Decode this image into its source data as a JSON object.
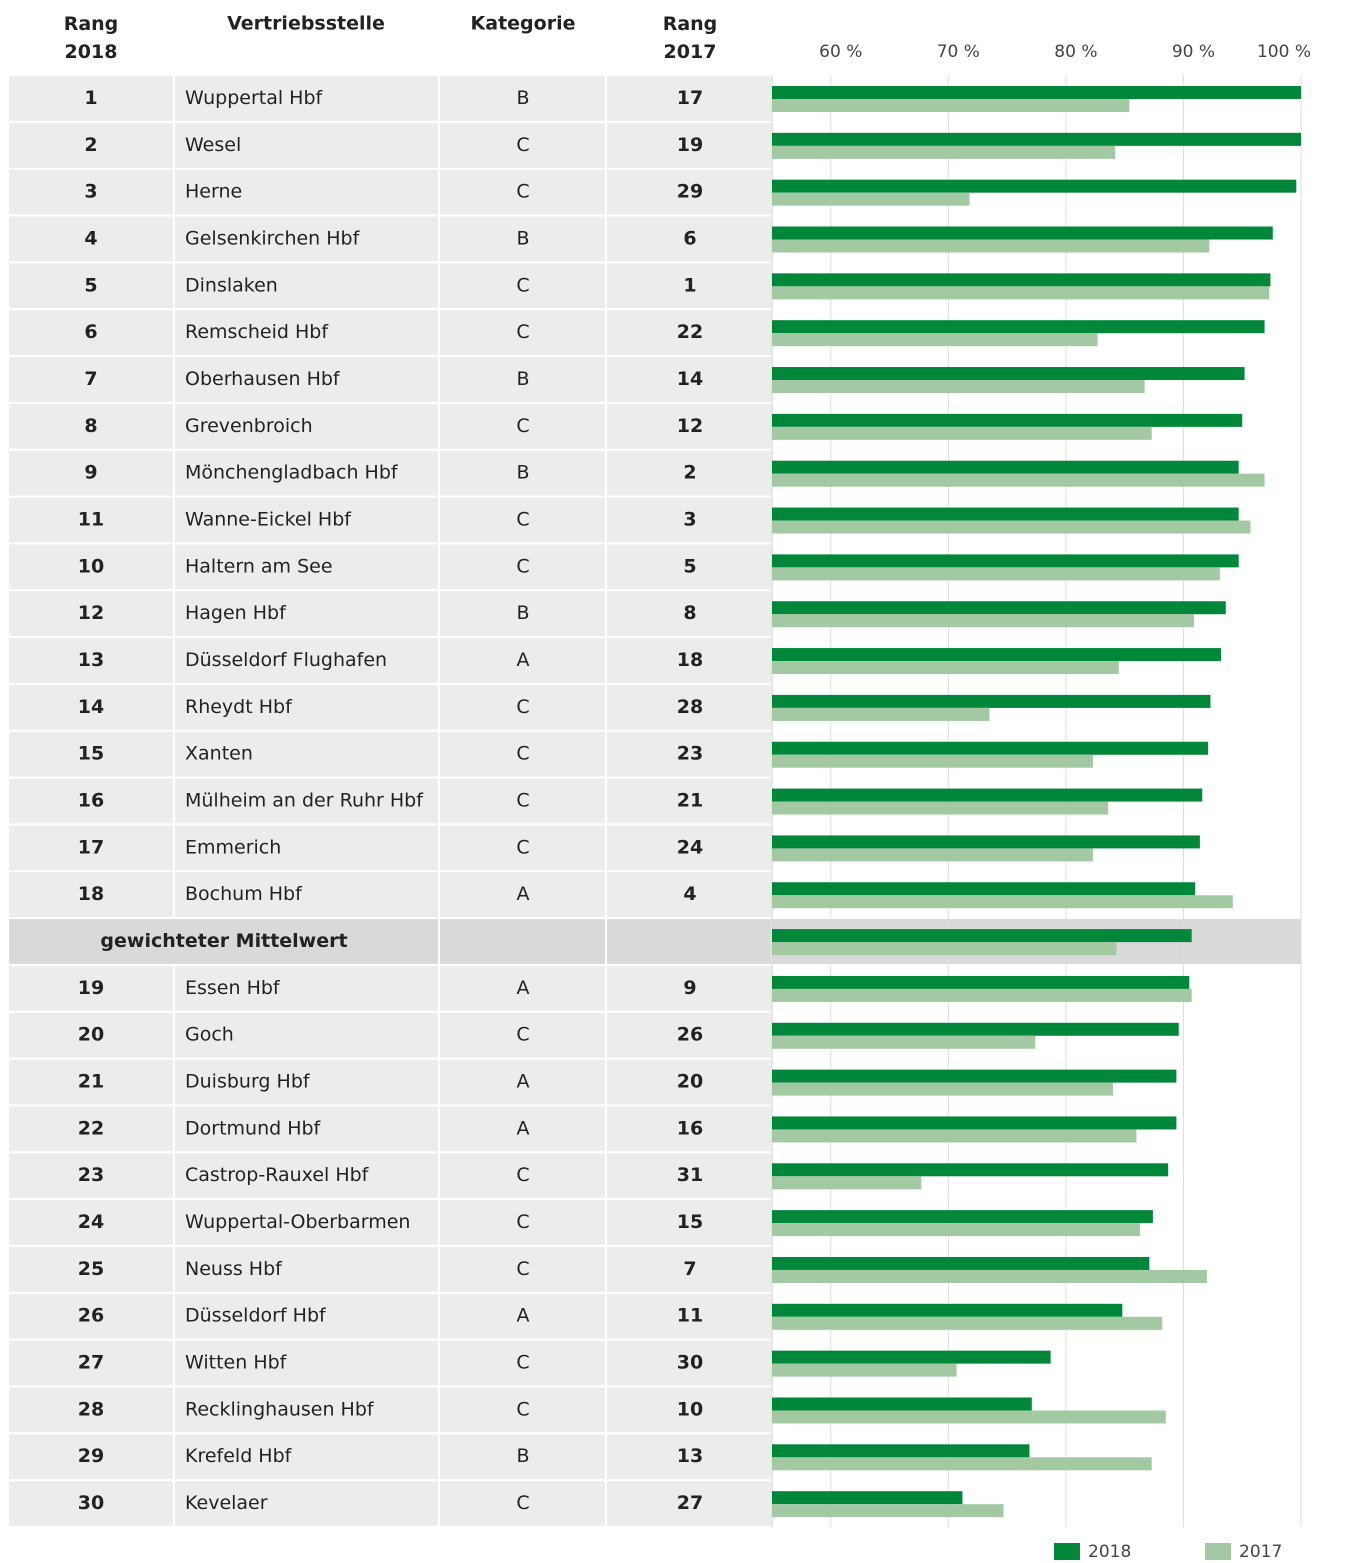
{
  "chart_data": {
    "type": "bar",
    "orientation": "horizontal",
    "columns": [
      "Rang 2018",
      "Vertriebsstelle",
      "Kategorie",
      "Rang 2017"
    ],
    "rows": [
      [
        1,
        "Wuppertal Hbf",
        "B",
        17
      ],
      [
        2,
        "Wesel",
        "C",
        19
      ],
      [
        3,
        "Herne",
        "C",
        29
      ],
      [
        4,
        "Gelsenkirchen Hbf",
        "B",
        6
      ],
      [
        5,
        "Dinslaken",
        "C",
        1
      ],
      [
        6,
        "Remscheid Hbf",
        "C",
        22
      ],
      [
        7,
        "Oberhausen Hbf",
        "B",
        14
      ],
      [
        8,
        "Grevenbroich",
        "C",
        12
      ],
      [
        9,
        "Mönchengladbach Hbf",
        "B",
        2
      ],
      [
        11,
        "Wanne-Eickel Hbf",
        "C",
        3
      ],
      [
        10,
        "Haltern am See",
        "C",
        5
      ],
      [
        12,
        "Hagen Hbf",
        "B",
        8
      ],
      [
        13,
        "Düsseldorf Flughafen",
        "A",
        18
      ],
      [
        14,
        "Rheydt Hbf",
        "C",
        28
      ],
      [
        15,
        "Xanten",
        "C",
        23
      ],
      [
        16,
        "Mülheim an der Ruhr Hbf",
        "C",
        21
      ],
      [
        17,
        "Emmerich",
        "C",
        24
      ],
      [
        18,
        "Bochum Hbf",
        "A",
        4
      ],
      [
        "gewichteter Mittelwert"
      ],
      [
        19,
        "Essen Hbf",
        "A",
        9
      ],
      [
        20,
        "Goch",
        "C",
        26
      ],
      [
        21,
        "Duisburg Hbf",
        "A",
        20
      ],
      [
        22,
        "Dortmund Hbf",
        "A",
        16
      ],
      [
        23,
        "Castrop-Rauxel Hbf",
        "C",
        31
      ],
      [
        24,
        "Wuppertal-Oberbarmen",
        "C",
        15
      ],
      [
        25,
        "Neuss Hbf",
        "C",
        7
      ],
      [
        26,
        "Düsseldorf Hbf",
        "A",
        11
      ],
      [
        27,
        "Witten Hbf",
        "C",
        30
      ],
      [
        28,
        "Recklinghausen Hbf",
        "C",
        10
      ],
      [
        29,
        "Krefeld Hbf",
        "B",
        13
      ],
      [
        30,
        "Kevelaer",
        "C",
        27
      ]
    ],
    "series": [
      {
        "name": "2018",
        "color": "#00873a",
        "values": [
          100,
          100,
          99.6,
          97.6,
          97.4,
          96.9,
          95.2,
          95.0,
          94.7,
          94.7,
          94.7,
          93.6,
          93.2,
          92.3,
          92.1,
          91.6,
          91.4,
          91.0,
          90.7,
          90.5,
          89.6,
          89.4,
          89.4,
          88.7,
          87.4,
          87.1,
          84.8,
          78.7,
          77.1,
          76.9,
          71.2
        ]
      },
      {
        "name": "2017",
        "color": "#a2c9a2",
        "values": [
          85.4,
          84.2,
          71.8,
          92.2,
          97.3,
          82.7,
          86.7,
          87.3,
          96.9,
          95.7,
          93.1,
          90.9,
          84.5,
          73.5,
          82.3,
          83.6,
          82.3,
          94.2,
          84.3,
          90.7,
          77.4,
          84.0,
          86.0,
          67.7,
          86.3,
          92.0,
          88.2,
          70.7,
          88.5,
          87.3,
          74.7
        ]
      }
    ],
    "xlim": [
      55,
      100
    ],
    "xticks": [
      {
        "value": 60,
        "label": "60 %"
      },
      {
        "value": 70,
        "label": "70 %"
      },
      {
        "value": 80,
        "label": "80 %"
      },
      {
        "value": 90,
        "label": "90 %"
      },
      {
        "value": 100,
        "label": "100 %"
      }
    ],
    "legend": "bottom-right"
  }
}
